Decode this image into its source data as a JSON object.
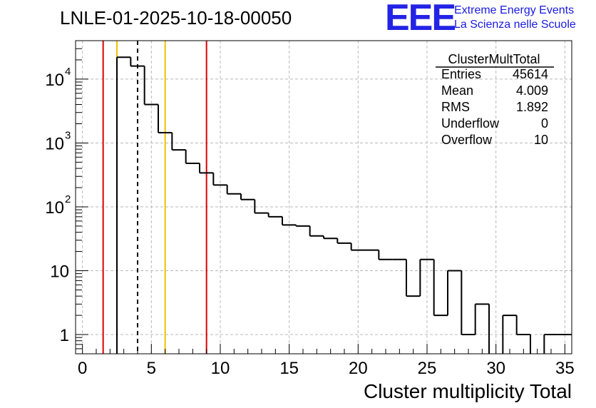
{
  "chart_data": {
    "type": "histogram",
    "title": "LNLE-01-2025-10-18-00050",
    "xlabel": "Cluster multiplicity Total",
    "ylabel": "",
    "yscale": "log",
    "xlim": [
      -0.5,
      35.5
    ],
    "ylim": [
      0.5,
      40000
    ],
    "bin_width": 1,
    "bins": [
      {
        "x0": -0.5,
        "value": 0
      },
      {
        "x0": 0.5,
        "value": 0
      },
      {
        "x0": 1.5,
        "value": 0
      },
      {
        "x0": 2.5,
        "value": 22000
      },
      {
        "x0": 3.5,
        "value": 16000
      },
      {
        "x0": 4.5,
        "value": 4000
      },
      {
        "x0": 5.5,
        "value": 1450
      },
      {
        "x0": 6.5,
        "value": 780
      },
      {
        "x0": 7.5,
        "value": 480
      },
      {
        "x0": 8.5,
        "value": 340
      },
      {
        "x0": 9.5,
        "value": 220
      },
      {
        "x0": 10.5,
        "value": 160
      },
      {
        "x0": 11.5,
        "value": 130
      },
      {
        "x0": 12.5,
        "value": 80
      },
      {
        "x0": 13.5,
        "value": 70
      },
      {
        "x0": 14.5,
        "value": 52
      },
      {
        "x0": 15.5,
        "value": 50
      },
      {
        "x0": 16.5,
        "value": 35
      },
      {
        "x0": 17.5,
        "value": 32
      },
      {
        "x0": 18.5,
        "value": 27
      },
      {
        "x0": 19.5,
        "value": 21
      },
      {
        "x0": 20.5,
        "value": 21
      },
      {
        "x0": 21.5,
        "value": 15
      },
      {
        "x0": 22.5,
        "value": 15
      },
      {
        "x0": 23.5,
        "value": 4
      },
      {
        "x0": 24.5,
        "value": 15
      },
      {
        "x0": 25.5,
        "value": 2
      },
      {
        "x0": 26.5,
        "value": 10
      },
      {
        "x0": 27.5,
        "value": 1
      },
      {
        "x0": 28.5,
        "value": 3
      },
      {
        "x0": 29.5,
        "value": 0
      },
      {
        "x0": 30.5,
        "value": 2
      },
      {
        "x0": 31.5,
        "value": 1
      },
      {
        "x0": 32.5,
        "value": 0
      },
      {
        "x0": 33.5,
        "value": 1
      },
      {
        "x0": 34.5,
        "value": 1
      }
    ],
    "x_ticks": [
      {
        "value": 0,
        "label": "0"
      },
      {
        "value": 5,
        "label": "5"
      },
      {
        "value": 10,
        "label": "10"
      },
      {
        "value": 15,
        "label": "15"
      },
      {
        "value": 20,
        "label": "20"
      },
      {
        "value": 25,
        "label": "25"
      },
      {
        "value": 30,
        "label": "30"
      },
      {
        "value": 35,
        "label": "35"
      }
    ],
    "y_ticks": [
      {
        "value": 1,
        "label": "1",
        "exp": ""
      },
      {
        "value": 10,
        "label": "10",
        "exp": ""
      },
      {
        "value": 100,
        "label": "10",
        "exp": "2"
      },
      {
        "value": 1000,
        "label": "10",
        "exp": "3"
      },
      {
        "value": 10000,
        "label": "10",
        "exp": "4"
      }
    ],
    "vertical_lines": [
      {
        "x": 1.5,
        "color": "#e00000",
        "style": "solid"
      },
      {
        "x": 2.5,
        "color": "#f0c000",
        "style": "solid"
      },
      {
        "x": 4.0,
        "color": "#000000",
        "style": "dashed"
      },
      {
        "x": 6.0,
        "color": "#f0c000",
        "style": "solid"
      },
      {
        "x": 9.0,
        "color": "#e00000",
        "style": "solid"
      }
    ],
    "grid": true,
    "stats_box": {
      "name": "ClusterMultTotal",
      "rows": [
        {
          "label": "Entries",
          "value": "45614"
        },
        {
          "label": "Mean",
          "value": "4.009"
        },
        {
          "label": "RMS",
          "value": "1.892"
        },
        {
          "label": "Underflow",
          "value": "0"
        },
        {
          "label": "Overflow",
          "value": "10"
        }
      ]
    }
  },
  "logo": {
    "text": "EEE",
    "line1": "Extreme Energy Events",
    "line2": "La Scienza nelle Scuole",
    "color": "#2323e6"
  }
}
